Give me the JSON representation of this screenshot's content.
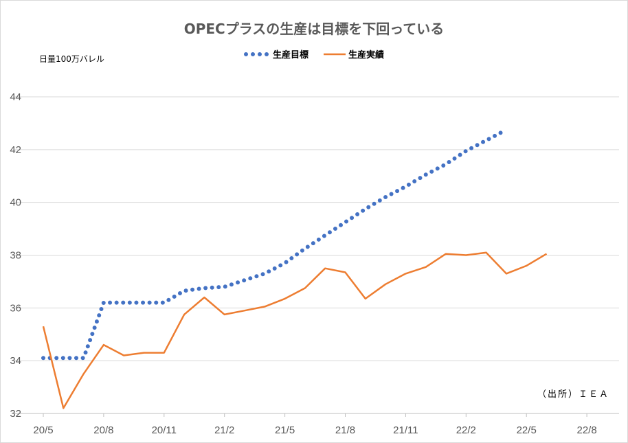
{
  "chart_data": {
    "type": "line",
    "title": "OPECプラスの生産は目標を下回っている",
    "unit_label": "日量100万バレル",
    "source": "（出所）ＩＥＡ",
    "ylim": [
      32,
      44
    ],
    "yticks": [
      "32",
      "34",
      "36",
      "38",
      "40",
      "42",
      "44"
    ],
    "xticks": [
      "20/5",
      "20/8",
      "20/11",
      "21/2",
      "21/5",
      "21/8",
      "21/11",
      "22/2",
      "22/5",
      "22/8"
    ],
    "grid": true,
    "legend_position": "top",
    "months": [
      "2020-05",
      "2020-06",
      "2020-07",
      "2020-08",
      "2020-09",
      "2020-10",
      "2020-11",
      "2020-12",
      "2021-01",
      "2021-02",
      "2021-03",
      "2021-04",
      "2021-05",
      "2021-06",
      "2021-07",
      "2021-08",
      "2021-09",
      "2021-10",
      "2021-11",
      "2021-12",
      "2022-01",
      "2022-02",
      "2022-03",
      "2022-04",
      "2022-05",
      "2022-06",
      "2022-07",
      "2022-08"
    ],
    "series": [
      {
        "name": "生産目標",
        "color": "#4472c4",
        "style": "dotted",
        "values": [
          34.1,
          34.1,
          34.1,
          36.2,
          36.2,
          36.2,
          36.2,
          36.65,
          36.75,
          36.8,
          37.05,
          37.3,
          37.7,
          38.25,
          38.75,
          39.25,
          39.75,
          40.2,
          40.6,
          41.05,
          41.45,
          41.95,
          42.35,
          42.75,
          null,
          null,
          null,
          null
        ]
      },
      {
        "name": "生産実績",
        "color": "#ed7d31",
        "style": "solid",
        "values": [
          35.3,
          32.2,
          33.5,
          34.6,
          34.2,
          34.3,
          34.3,
          35.75,
          36.4,
          35.75,
          35.9,
          36.05,
          36.35,
          36.75,
          37.5,
          37.35,
          36.35,
          36.9,
          37.3,
          37.55,
          38.05,
          38.0,
          38.1,
          37.3,
          37.6,
          38.05,
          null,
          null
        ]
      }
    ]
  }
}
